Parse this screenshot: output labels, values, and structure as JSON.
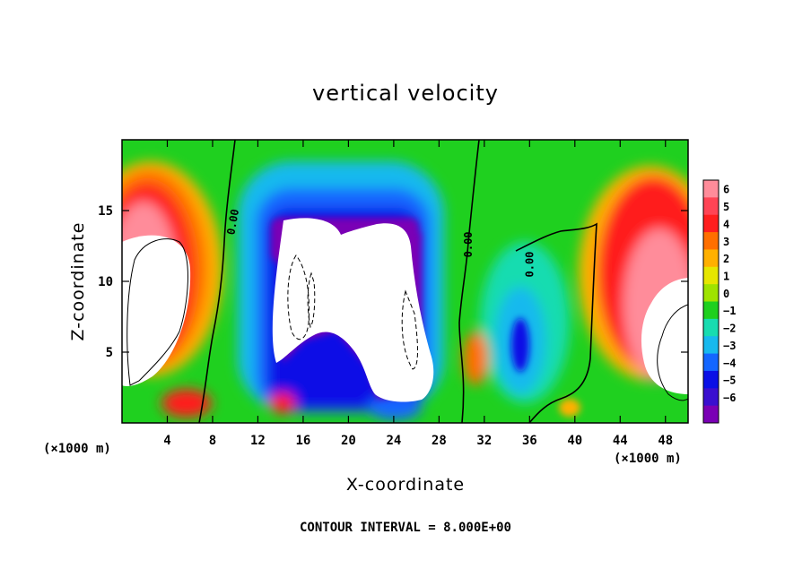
{
  "chart_data": {
    "type": "heatmap",
    "title": "vertical velocity",
    "xlabel": "X-coordinate",
    "ylabel": "Z-coordinate",
    "x_unit": "(×1000 m)",
    "x_unit_right": "(×1000 m)",
    "footer": "CONTOUR INTERVAL = 8.000E+00",
    "xlim": [
      0,
      50
    ],
    "ylim": [
      0,
      20
    ],
    "x_ticks": [
      4,
      8,
      12,
      16,
      20,
      24,
      28,
      32,
      36,
      40,
      44,
      48
    ],
    "x_tick_labels": [
      "4",
      "8",
      "12",
      "16",
      "20",
      "24",
      "28",
      "32",
      "36",
      "40",
      "44",
      "48"
    ],
    "y_ticks": [
      5,
      10,
      15
    ],
    "y_tick_labels": [
      "5",
      "10",
      "15"
    ],
    "colorbar": {
      "levels": [
        6,
        5,
        4,
        3,
        2,
        1,
        0,
        -1,
        -2,
        -3,
        -4,
        -5,
        -6
      ],
      "labels": [
        "6",
        "5",
        "4",
        "3",
        "2",
        "1",
        "0",
        "−1",
        "−2",
        "−3",
        "−4",
        "−5",
        "−6"
      ],
      "colors": [
        "#ff8c9a",
        "#ff4455",
        "#ff1e1e",
        "#ff6f00",
        "#ffb000",
        "#e6e600",
        "#9fe300",
        "#1fd01f",
        "#18dcb0",
        "#17b9ee",
        "#1466ff",
        "#0a10e6",
        "#3a0fd0",
        "#7a00b5"
      ]
    },
    "contour_labels": [
      {
        "text": "0.00",
        "x": 9.8,
        "z": 14.2,
        "angle": -80
      },
      {
        "text": "0.00",
        "x": 30.6,
        "z": 12.6,
        "angle": -90
      },
      {
        "text": "0.00",
        "x": 36.0,
        "z": 11.2,
        "angle": -90
      }
    ]
  }
}
